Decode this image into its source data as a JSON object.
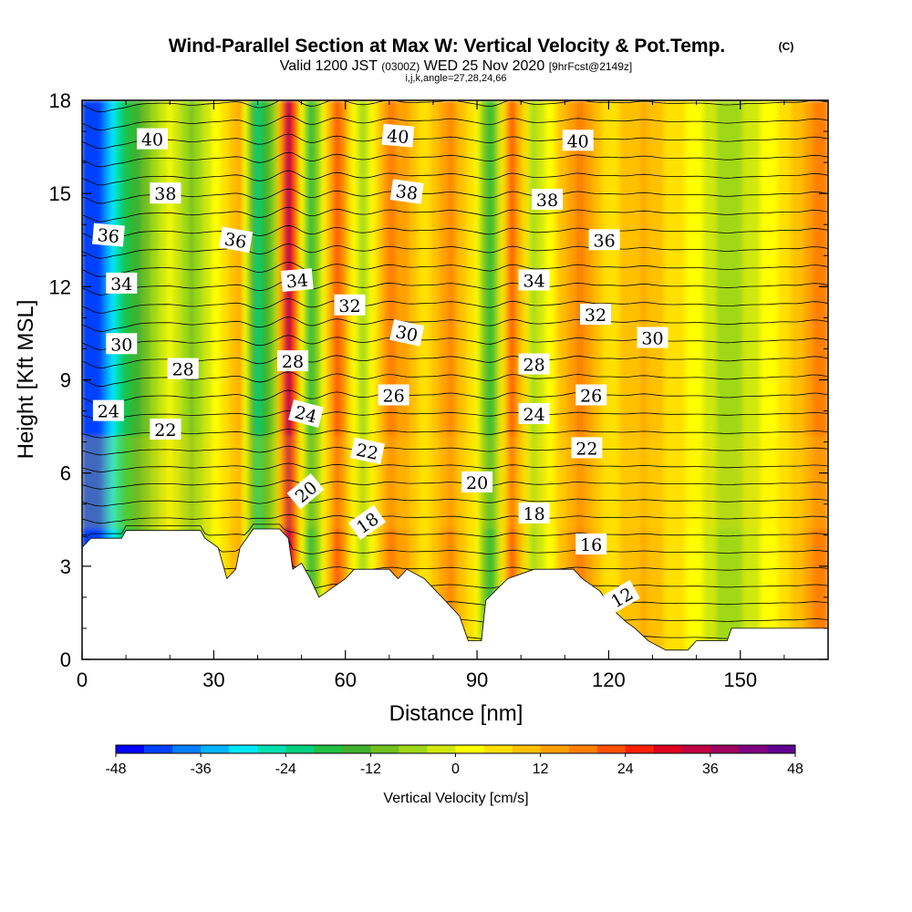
{
  "header": {
    "title": "Wind-Parallel Section at Max W: Vertical Velocity & Pot.Temp.",
    "title_mark": "(C)",
    "sub_prefix": "Valid 1200 JST",
    "sub_utc": "(0300Z)",
    "sub_date": "WED 25 Nov 2020",
    "sub_fcst": "[9hrFcst@2149z]",
    "sub_indices": "i,j,k,angle=27,28,24,66"
  },
  "chart_data": {
    "type": "heatmap",
    "xlabel": "Distance [nm]",
    "ylabel": "Height [Kft MSL]",
    "xlim": [
      0,
      170
    ],
    "ylim": [
      0,
      18
    ],
    "x_ticks": [
      0,
      30,
      60,
      90,
      120,
      150
    ],
    "y_ticks": [
      0,
      3,
      6,
      9,
      12,
      15,
      18
    ],
    "colorbar": {
      "label": "Vertical Velocity [cm/s]",
      "range": [
        -48,
        48
      ],
      "step": 4,
      "tick_values": [
        -48,
        -36,
        -24,
        -12,
        0,
        12,
        24,
        36,
        48
      ],
      "tick_labels": [
        "-48",
        "-36",
        "-24",
        "-12",
        "0",
        "12",
        "24",
        "36",
        "48"
      ],
      "colors": [
        "#0000ff",
        "#0040ff",
        "#0080ff",
        "#00b4ff",
        "#00e8ff",
        "#00e0b0",
        "#00d080",
        "#20c040",
        "#40b030",
        "#70c020",
        "#a0d818",
        "#d0e810",
        "#ffff00",
        "#ffe000",
        "#ffc000",
        "#ffa000",
        "#ff8000",
        "#ff5000",
        "#ff2000",
        "#e00020",
        "#c00040",
        "#a00060",
        "#800080",
        "#600090"
      ]
    },
    "velocity_columns": [
      {
        "x": 4,
        "w": -44
      },
      {
        "x": 9,
        "w": -22
      },
      {
        "x": 20,
        "w": 2
      },
      {
        "x": 25,
        "w": -10
      },
      {
        "x": 36,
        "w": 12
      },
      {
        "x": 40,
        "w": -24
      },
      {
        "x": 44,
        "w": -6
      },
      {
        "x": 47,
        "w": 36
      },
      {
        "x": 52,
        "w": -18
      },
      {
        "x": 58,
        "w": 22
      },
      {
        "x": 64,
        "w": -8
      },
      {
        "x": 70,
        "w": 18
      },
      {
        "x": 78,
        "w": 6
      },
      {
        "x": 84,
        "w": 16
      },
      {
        "x": 90,
        "w": 2
      },
      {
        "x": 93,
        "w": -18
      },
      {
        "x": 98,
        "w": 20
      },
      {
        "x": 103,
        "w": -6
      },
      {
        "x": 113,
        "w": 18
      },
      {
        "x": 120,
        "w": 6
      },
      {
        "x": 128,
        "w": 12
      },
      {
        "x": 140,
        "w": 2
      },
      {
        "x": 147,
        "w": -8
      },
      {
        "x": 160,
        "w": 6
      },
      {
        "x": 167,
        "w": 16
      }
    ],
    "terrain": [
      [
        0,
        3.6
      ],
      [
        2,
        3.9
      ],
      [
        9,
        3.9
      ],
      [
        10,
        4.15
      ],
      [
        27,
        4.15
      ],
      [
        28,
        3.9
      ],
      [
        31,
        3.6
      ],
      [
        32,
        3.1
      ],
      [
        33,
        2.6
      ],
      [
        35,
        2.9
      ],
      [
        36,
        3.6
      ],
      [
        39,
        4.2
      ],
      [
        45,
        4.2
      ],
      [
        47,
        3.9
      ],
      [
        48,
        2.9
      ],
      [
        50,
        3.1
      ],
      [
        52,
        2.6
      ],
      [
        54,
        2.0
      ],
      [
        57,
        2.3
      ],
      [
        60,
        2.6
      ],
      [
        62,
        2.9
      ],
      [
        70,
        2.9
      ],
      [
        72,
        2.6
      ],
      [
        74,
        2.9
      ],
      [
        78,
        2.6
      ],
      [
        80,
        2.3
      ],
      [
        82,
        2.0
      ],
      [
        86,
        1.4
      ],
      [
        88,
        0.6
      ],
      [
        91,
        0.6
      ],
      [
        92,
        1.9
      ],
      [
        97,
        2.6
      ],
      [
        103,
        2.9
      ],
      [
        112,
        2.9
      ],
      [
        114,
        2.6
      ],
      [
        118,
        2.2
      ],
      [
        121,
        1.6
      ],
      [
        124,
        1.2
      ],
      [
        126,
        1.0
      ],
      [
        129,
        0.6
      ],
      [
        133,
        0.3
      ],
      [
        138,
        0.3
      ],
      [
        140,
        0.6
      ],
      [
        147,
        0.6
      ],
      [
        148,
        1.0
      ],
      [
        170,
        1.0
      ]
    ],
    "isentropes": {
      "min": 10,
      "max": 40,
      "step": 1
    },
    "theta_labels": [
      {
        "text": "40",
        "x": 16,
        "y": 16.75,
        "rot": 0
      },
      {
        "text": "40",
        "x": 72,
        "y": 16.85,
        "rot": 5
      },
      {
        "text": "40",
        "x": 113,
        "y": 16.7,
        "rot": 0
      },
      {
        "text": "38",
        "x": 19,
        "y": 15.0,
        "rot": 0
      },
      {
        "text": "38",
        "x": 74,
        "y": 15.05,
        "rot": 8
      },
      {
        "text": "38",
        "x": 106,
        "y": 14.8,
        "rot": 0
      },
      {
        "text": "36",
        "x": 6,
        "y": 13.65,
        "rot": 5
      },
      {
        "text": "36",
        "x": 35,
        "y": 13.5,
        "rot": 10
      },
      {
        "text": "36",
        "x": 119,
        "y": 13.5,
        "rot": 0
      },
      {
        "text": "34",
        "x": 9,
        "y": 12.1,
        "rot": 0
      },
      {
        "text": "34",
        "x": 49,
        "y": 12.2,
        "rot": -5
      },
      {
        "text": "34",
        "x": 103,
        "y": 12.2,
        "rot": 0
      },
      {
        "text": "32",
        "x": 61,
        "y": 11.4,
        "rot": 0
      },
      {
        "text": "32",
        "x": 117,
        "y": 11.1,
        "rot": 0
      },
      {
        "text": "30",
        "x": 9,
        "y": 10.15,
        "rot": 0
      },
      {
        "text": "30",
        "x": 74,
        "y": 10.5,
        "rot": 12
      },
      {
        "text": "30",
        "x": 130,
        "y": 10.35,
        "rot": 0
      },
      {
        "text": "28",
        "x": 23,
        "y": 9.35,
        "rot": 0
      },
      {
        "text": "28",
        "x": 48,
        "y": 9.6,
        "rot": 0
      },
      {
        "text": "28",
        "x": 103,
        "y": 9.5,
        "rot": 0
      },
      {
        "text": "26",
        "x": 71,
        "y": 8.5,
        "rot": 0
      },
      {
        "text": "26",
        "x": 116,
        "y": 8.5,
        "rot": 0
      },
      {
        "text": "24",
        "x": 6,
        "y": 8.0,
        "rot": 0
      },
      {
        "text": "24",
        "x": 51,
        "y": 7.9,
        "rot": 15
      },
      {
        "text": "24",
        "x": 103,
        "y": 7.9,
        "rot": 0
      },
      {
        "text": "22",
        "x": 19,
        "y": 7.4,
        "rot": 0
      },
      {
        "text": "22",
        "x": 65,
        "y": 6.7,
        "rot": 12
      },
      {
        "text": "22",
        "x": 115,
        "y": 6.8,
        "rot": 0
      },
      {
        "text": "20",
        "x": 51,
        "y": 5.4,
        "rot": -40
      },
      {
        "text": "20",
        "x": 90,
        "y": 5.7,
        "rot": 0
      },
      {
        "text": "18",
        "x": 65,
        "y": 4.4,
        "rot": -35
      },
      {
        "text": "18",
        "x": 103,
        "y": 4.7,
        "rot": 0
      },
      {
        "text": "16",
        "x": 116,
        "y": 3.7,
        "rot": 0
      },
      {
        "text": "12",
        "x": 123,
        "y": 2.0,
        "rot": -30
      }
    ]
  }
}
